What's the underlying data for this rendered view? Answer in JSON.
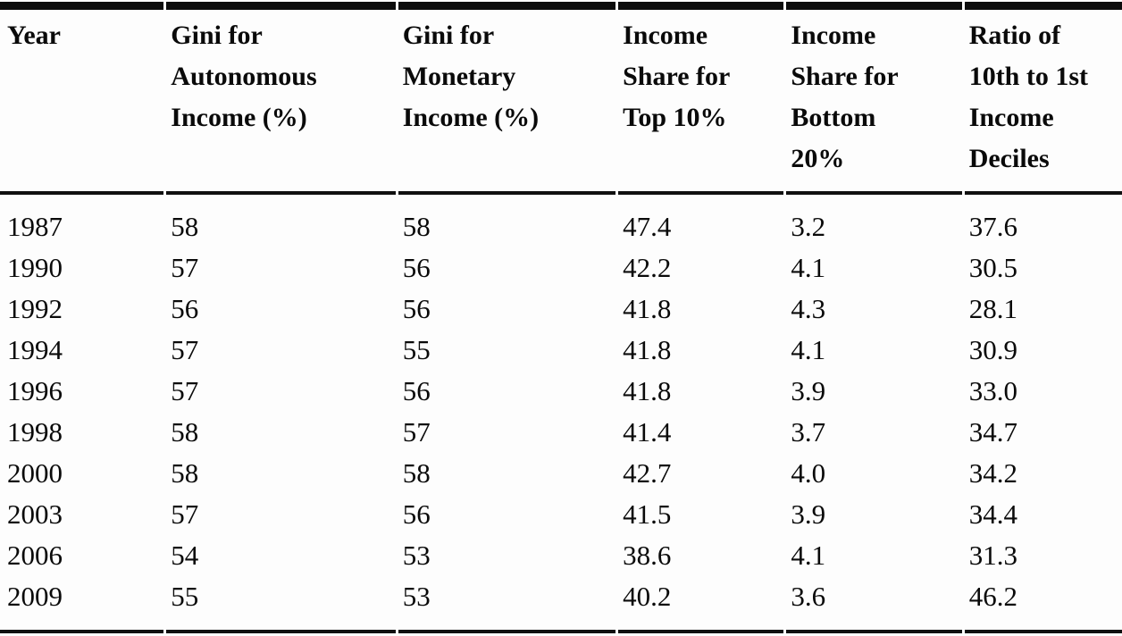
{
  "page": {
    "background_color": "#fdfdfd",
    "text_color": "#0a0a0a",
    "rule_color": "#0c0c0c"
  },
  "table": {
    "columns": [
      "Year",
      "Gini for\nAutonomous\nIncome (%)",
      "Gini for\nMonetary\nIncome (%)",
      "Income\nShare for\nTop 10%",
      "Income\nShare for\nBottom\n20%",
      "Ratio of\n10th to 1st\nIncome\nDeciles"
    ],
    "rows": [
      [
        "1987",
        "58",
        "58",
        "47.4",
        "3.2",
        "37.6"
      ],
      [
        "1990",
        "57",
        "56",
        "42.2",
        "4.1",
        "30.5"
      ],
      [
        "1992",
        "56",
        "56",
        "41.8",
        "4.3",
        "28.1"
      ],
      [
        "1994",
        "57",
        "55",
        "41.8",
        "4.1",
        "30.9"
      ],
      [
        "1996",
        "57",
        "56",
        "41.8",
        "3.9",
        "33.0"
      ],
      [
        "1998",
        "58",
        "57",
        "41.4",
        "3.7",
        "34.7"
      ],
      [
        "2000",
        "58",
        "58",
        "42.7",
        "4.0",
        "34.2"
      ],
      [
        "2003",
        "57",
        "56",
        "41.5",
        "3.9",
        "34.4"
      ],
      [
        "2006",
        "54",
        "53",
        "38.6",
        "4.1",
        "31.3"
      ],
      [
        "2009",
        "55",
        "53",
        "40.2",
        "3.6",
        "46.2"
      ]
    ]
  },
  "chart_data": {
    "type": "table",
    "title": "",
    "categories": [
      "1987",
      "1990",
      "1992",
      "1994",
      "1996",
      "1998",
      "2000",
      "2003",
      "2006",
      "2009"
    ],
    "series": [
      {
        "name": "Gini for Autonomous Income (%)",
        "values": [
          58,
          57,
          56,
          57,
          57,
          58,
          58,
          57,
          54,
          55
        ]
      },
      {
        "name": "Gini for Monetary Income (%)",
        "values": [
          58,
          56,
          56,
          55,
          56,
          57,
          58,
          56,
          53,
          53
        ]
      },
      {
        "name": "Income Share for Top 10%",
        "values": [
          47.4,
          42.2,
          41.8,
          41.8,
          41.8,
          41.4,
          42.7,
          41.5,
          38.6,
          40.2
        ]
      },
      {
        "name": "Income Share for Bottom 20%",
        "values": [
          3.2,
          4.1,
          4.3,
          4.1,
          3.9,
          3.7,
          4.0,
          3.9,
          4.1,
          3.6
        ]
      },
      {
        "name": "Ratio of 10th to 1st Income Deciles",
        "values": [
          37.6,
          30.5,
          28.1,
          30.9,
          33.0,
          34.7,
          34.2,
          34.4,
          31.3,
          46.2
        ]
      }
    ]
  }
}
